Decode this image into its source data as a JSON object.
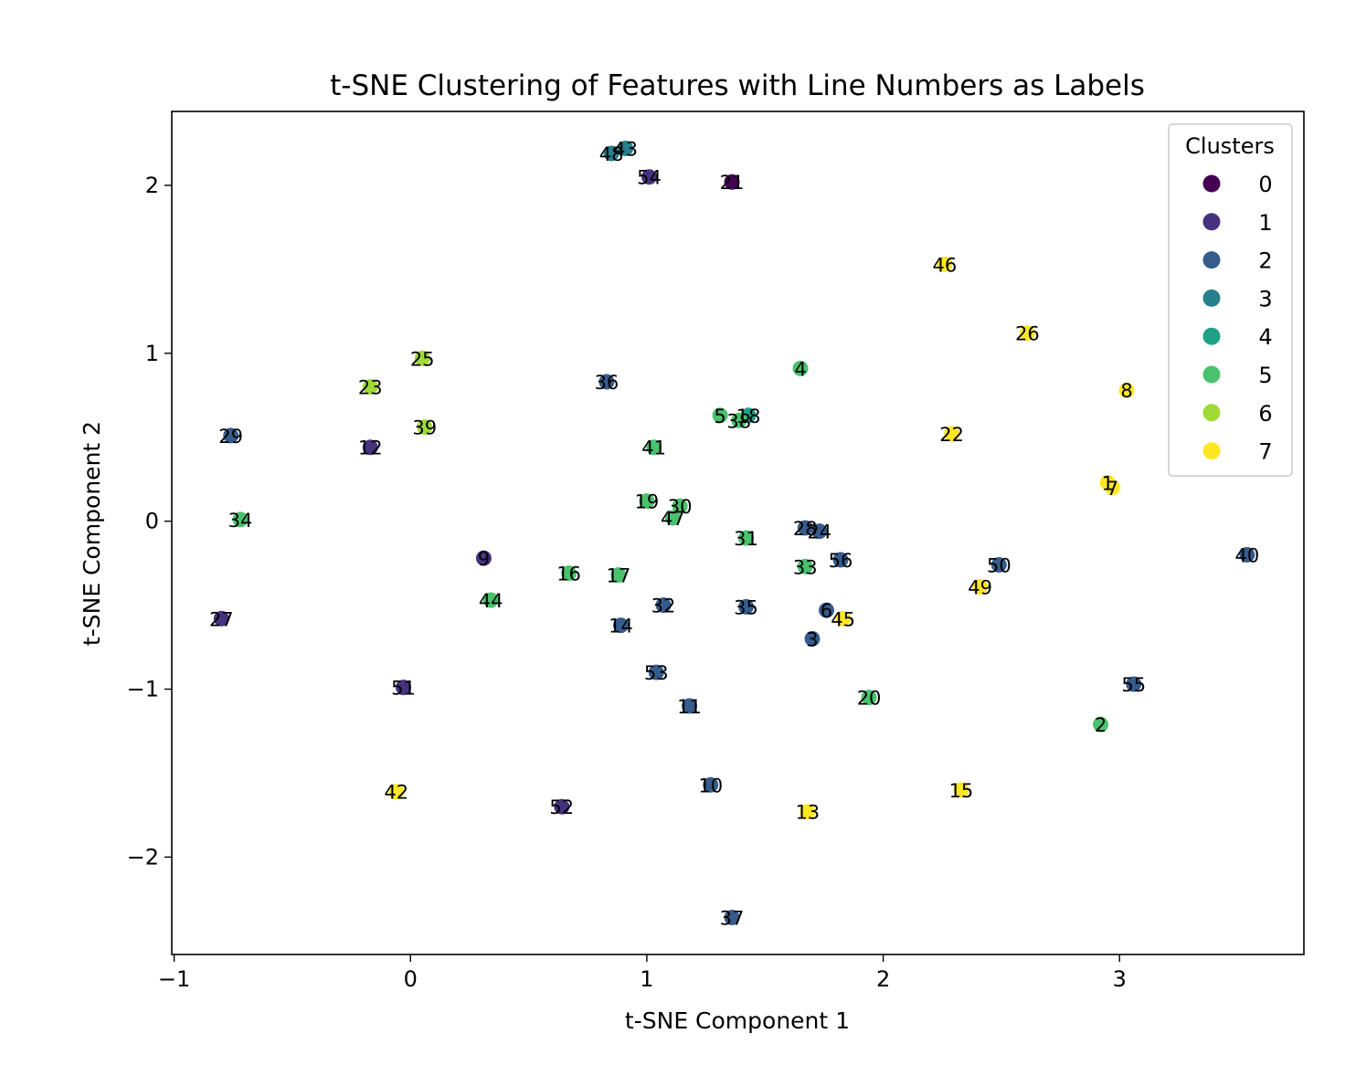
{
  "chart_data": {
    "type": "scatter",
    "title": "t-SNE Clustering of Features with Line Numbers as Labels",
    "xlabel": "t-SNE Component 1",
    "ylabel": "t-SNE Component 2",
    "xlim": [
      -1.01,
      3.78
    ],
    "ylim": [
      -2.58,
      2.44
    ],
    "xticks": [
      -1,
      0,
      1,
      2,
      3
    ],
    "yticks": [
      -2,
      -1,
      0,
      1,
      2
    ],
    "grid": false,
    "legend": {
      "title": "Clusters",
      "position": "top-right",
      "entries": [
        {
          "label": "0",
          "color": "#440154"
        },
        {
          "label": "1",
          "color": "#46327e"
        },
        {
          "label": "2",
          "color": "#365c8d"
        },
        {
          "label": "3",
          "color": "#277f8e"
        },
        {
          "label": "4",
          "color": "#1fa187"
        },
        {
          "label": "5",
          "color": "#4ac16d"
        },
        {
          "label": "6",
          "color": "#a0da39"
        },
        {
          "label": "7",
          "color": "#fde725"
        }
      ]
    },
    "points": [
      {
        "label": "1",
        "x": 2.95,
        "y": 0.23,
        "cluster": 7
      },
      {
        "label": "2",
        "x": 2.92,
        "y": -1.21,
        "cluster": 5
      },
      {
        "label": "3",
        "x": 1.7,
        "y": -0.7,
        "cluster": 2
      },
      {
        "label": "4",
        "x": 1.65,
        "y": 0.91,
        "cluster": 5
      },
      {
        "label": "5",
        "x": 1.31,
        "y": 0.63,
        "cluster": 5
      },
      {
        "label": "6",
        "x": 1.76,
        "y": -0.53,
        "cluster": 2
      },
      {
        "label": "7",
        "x": 2.97,
        "y": 0.2,
        "cluster": 7
      },
      {
        "label": "8",
        "x": 3.03,
        "y": 0.78,
        "cluster": 7
      },
      {
        "label": "9",
        "x": 0.31,
        "y": -0.22,
        "cluster": 1
      },
      {
        "label": "10",
        "x": 1.27,
        "y": -1.57,
        "cluster": 2
      },
      {
        "label": "11",
        "x": 1.18,
        "y": -1.1,
        "cluster": 2
      },
      {
        "label": "12",
        "x": -0.17,
        "y": 0.44,
        "cluster": 1
      },
      {
        "label": "13",
        "x": 1.68,
        "y": -1.73,
        "cluster": 7
      },
      {
        "label": "14",
        "x": 0.89,
        "y": -0.62,
        "cluster": 2
      },
      {
        "label": "15",
        "x": 2.33,
        "y": -1.6,
        "cluster": 7
      },
      {
        "label": "16",
        "x": 0.67,
        "y": -0.31,
        "cluster": 5
      },
      {
        "label": "17",
        "x": 0.88,
        "y": -0.32,
        "cluster": 5
      },
      {
        "label": "18",
        "x": 1.43,
        "y": 0.63,
        "cluster": 4
      },
      {
        "label": "19",
        "x": 1.0,
        "y": 0.12,
        "cluster": 5
      },
      {
        "label": "20",
        "x": 1.94,
        "y": -1.05,
        "cluster": 5
      },
      {
        "label": "21",
        "x": 1.36,
        "y": 2.02,
        "cluster": 0
      },
      {
        "label": "22",
        "x": 2.29,
        "y": 0.52,
        "cluster": 7
      },
      {
        "label": "23",
        "x": -0.17,
        "y": 0.8,
        "cluster": 6
      },
      {
        "label": "24",
        "x": 1.73,
        "y": -0.06,
        "cluster": 2
      },
      {
        "label": "25",
        "x": 0.05,
        "y": 0.97,
        "cluster": 6
      },
      {
        "label": "26",
        "x": 2.61,
        "y": 1.12,
        "cluster": 7
      },
      {
        "label": "27",
        "x": -0.8,
        "y": -0.58,
        "cluster": 1
      },
      {
        "label": "28",
        "x": 1.67,
        "y": -0.04,
        "cluster": 2
      },
      {
        "label": "29",
        "x": -0.76,
        "y": 0.51,
        "cluster": 2
      },
      {
        "label": "30",
        "x": 1.14,
        "y": 0.09,
        "cluster": 5
      },
      {
        "label": "31",
        "x": 1.42,
        "y": -0.1,
        "cluster": 5
      },
      {
        "label": "32",
        "x": 1.07,
        "y": -0.5,
        "cluster": 2
      },
      {
        "label": "33",
        "x": 1.67,
        "y": -0.27,
        "cluster": 5
      },
      {
        "label": "34",
        "x": -0.72,
        "y": 0.01,
        "cluster": 5
      },
      {
        "label": "35",
        "x": 1.42,
        "y": -0.51,
        "cluster": 2
      },
      {
        "label": "36",
        "x": 0.83,
        "y": 0.83,
        "cluster": 2
      },
      {
        "label": "37",
        "x": 1.36,
        "y": -2.36,
        "cluster": 2
      },
      {
        "label": "38",
        "x": 1.39,
        "y": 0.6,
        "cluster": 5
      },
      {
        "label": "39",
        "x": 0.06,
        "y": 0.56,
        "cluster": 6
      },
      {
        "label": "40",
        "x": 3.54,
        "y": -0.2,
        "cluster": 2
      },
      {
        "label": "41",
        "x": 1.03,
        "y": 0.44,
        "cluster": 5
      },
      {
        "label": "42",
        "x": -0.06,
        "y": -1.61,
        "cluster": 7
      },
      {
        "label": "43",
        "x": 0.91,
        "y": 2.22,
        "cluster": 3
      },
      {
        "label": "44",
        "x": 0.34,
        "y": -0.47,
        "cluster": 5
      },
      {
        "label": "45",
        "x": 1.83,
        "y": -0.58,
        "cluster": 7
      },
      {
        "label": "46",
        "x": 2.26,
        "y": 1.53,
        "cluster": 7
      },
      {
        "label": "47",
        "x": 1.11,
        "y": 0.02,
        "cluster": 5
      },
      {
        "label": "48",
        "x": 0.85,
        "y": 2.19,
        "cluster": 3
      },
      {
        "label": "49",
        "x": 2.41,
        "y": -0.39,
        "cluster": 7
      },
      {
        "label": "50",
        "x": 2.49,
        "y": -0.26,
        "cluster": 2
      },
      {
        "label": "51",
        "x": -0.03,
        "y": -0.99,
        "cluster": 1
      },
      {
        "label": "52",
        "x": 0.64,
        "y": -1.7,
        "cluster": 1
      },
      {
        "label": "53",
        "x": 1.04,
        "y": -0.9,
        "cluster": 2
      },
      {
        "label": "54",
        "x": 1.01,
        "y": 2.05,
        "cluster": 1
      },
      {
        "label": "55",
        "x": 3.06,
        "y": -0.97,
        "cluster": 2
      },
      {
        "label": "56",
        "x": 1.82,
        "y": -0.23,
        "cluster": 2
      }
    ]
  }
}
